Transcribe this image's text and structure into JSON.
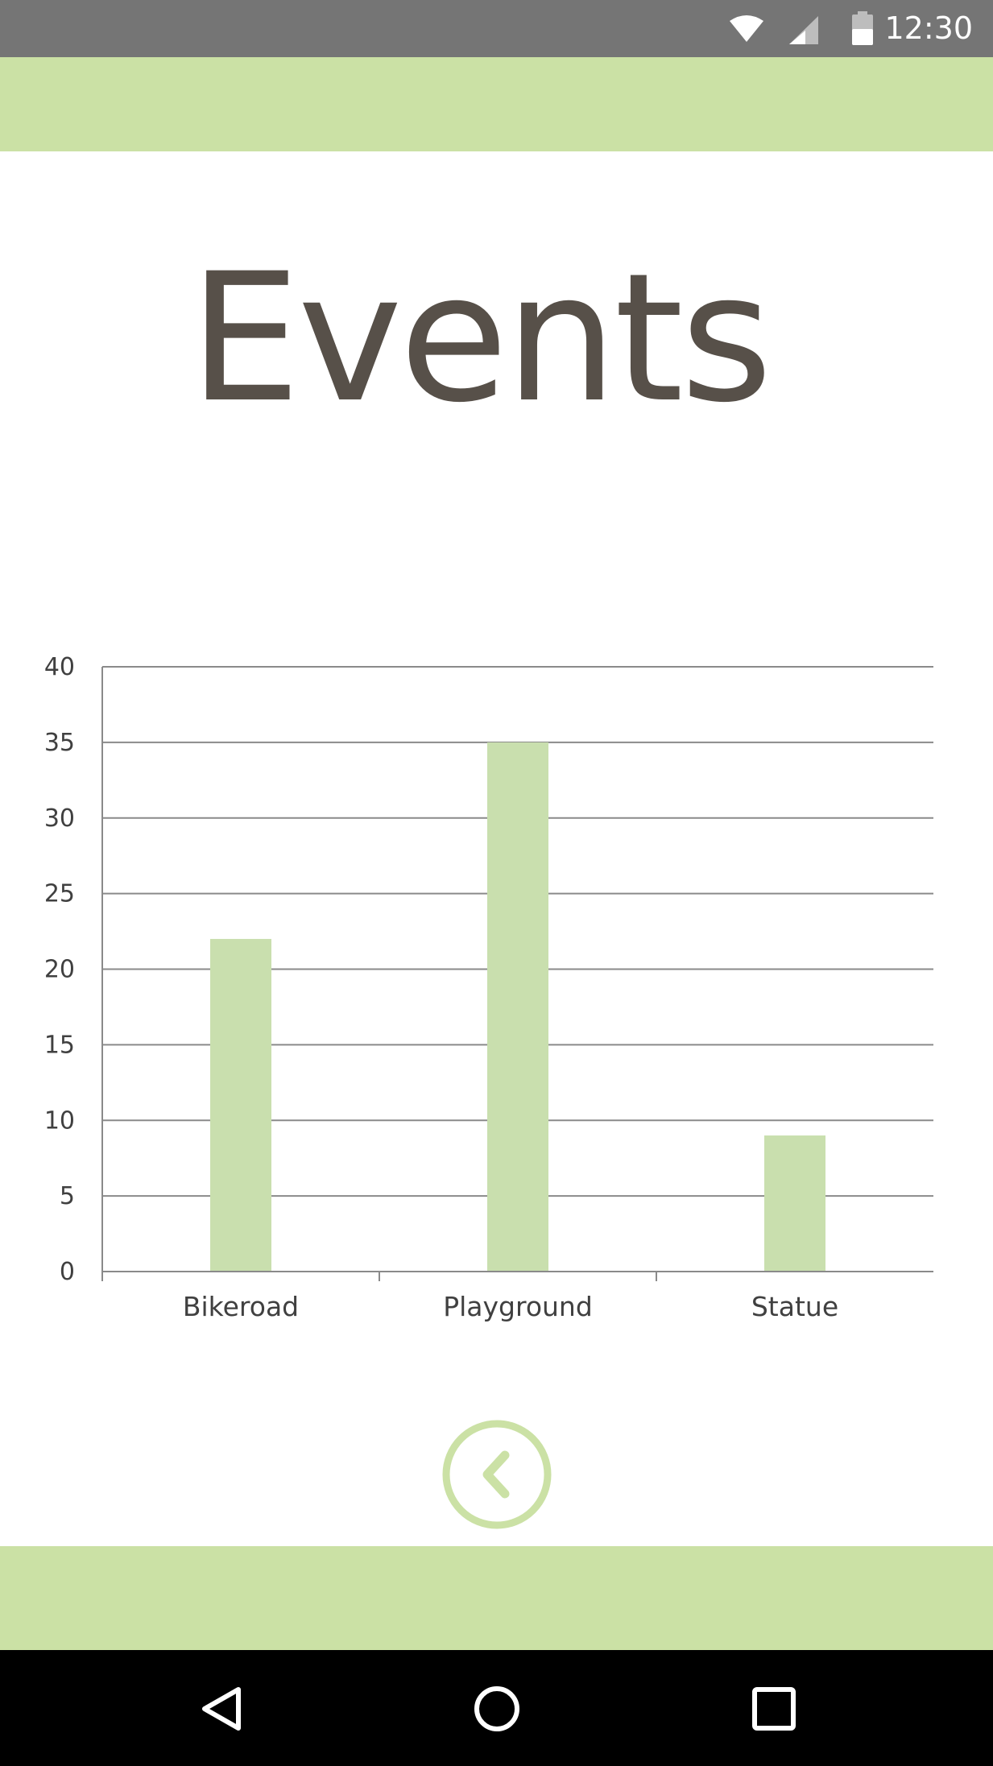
{
  "status_bar": {
    "time": "12:30",
    "icons": [
      "wifi-icon",
      "cell-signal-icon",
      "battery-icon"
    ]
  },
  "page": {
    "title": "Events"
  },
  "colors": {
    "accent": "#cbe1a5",
    "bar": "#c9dfae",
    "title": "#575049",
    "status_bar": "#757575",
    "nav_bar": "#000000"
  },
  "chart_data": {
    "type": "bar",
    "categories": [
      "Bikeroad",
      "Playground",
      "Statue"
    ],
    "values": [
      22,
      35,
      9
    ],
    "title": "",
    "xlabel": "",
    "ylabel": "",
    "ylim": [
      0,
      40
    ],
    "yticks": [
      0,
      5,
      10,
      15,
      20,
      25,
      30,
      35,
      40
    ],
    "grid": true,
    "legend": "none"
  },
  "actions": {
    "back_icon": "chevron-left-icon"
  },
  "nav_bar": {
    "buttons": [
      "back-triangle-icon",
      "home-circle-icon",
      "recents-square-icon"
    ]
  }
}
